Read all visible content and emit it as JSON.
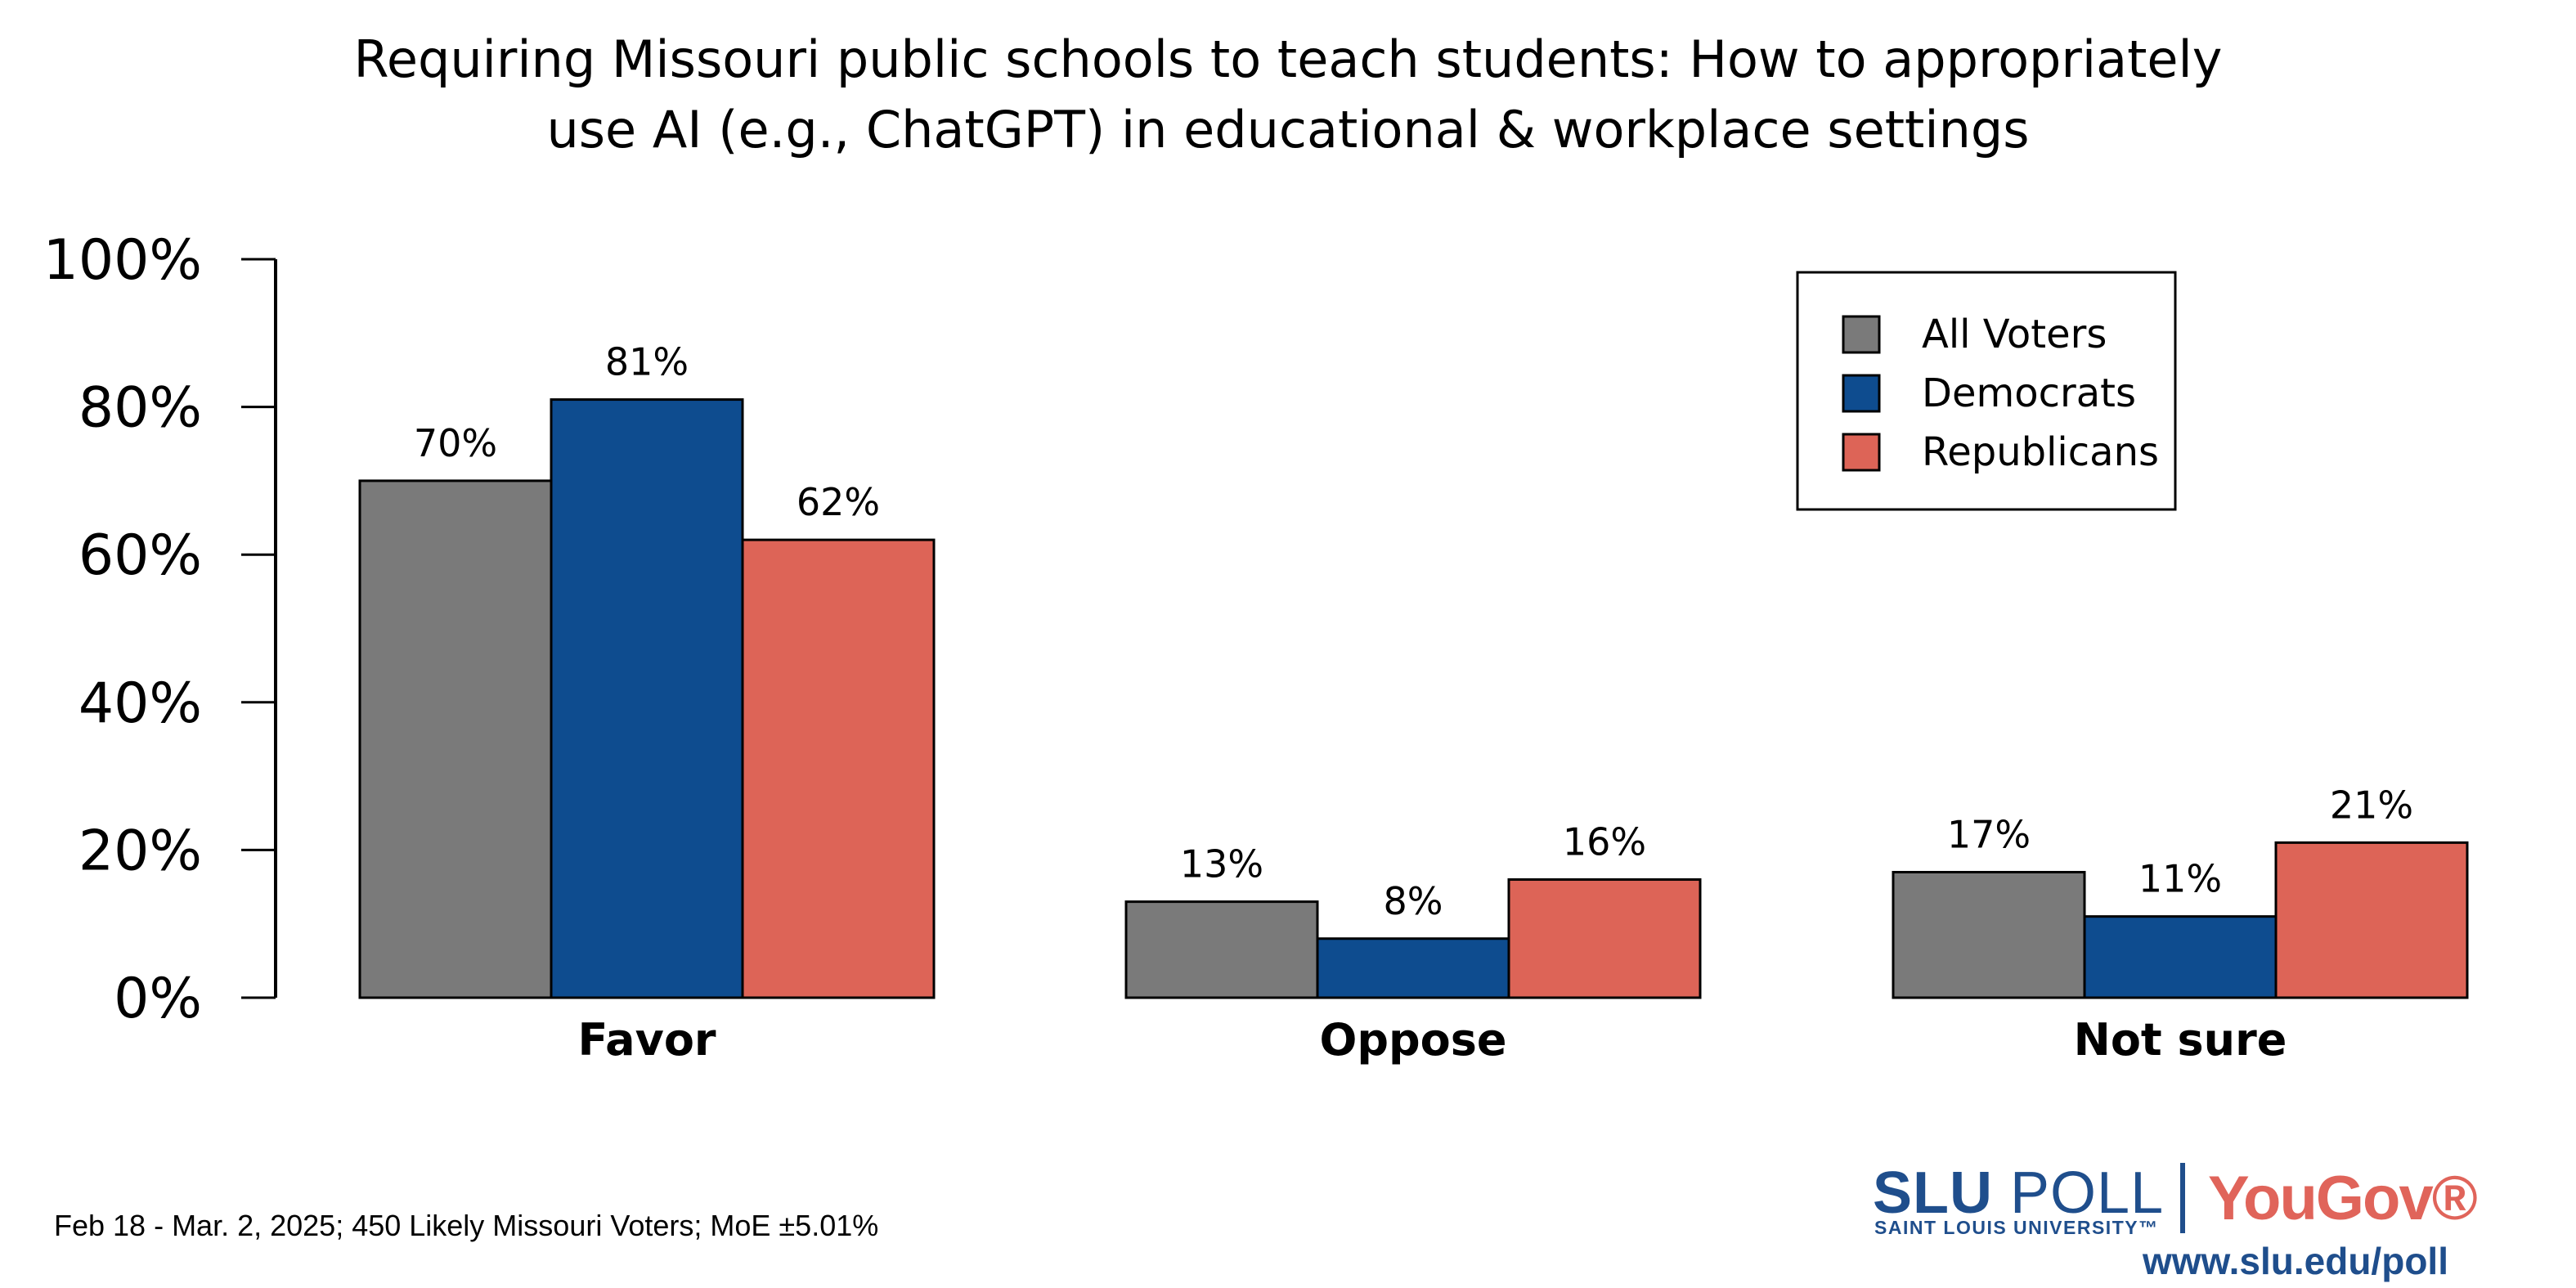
{
  "chart_data": {
    "type": "bar",
    "title": "Requiring Missouri public schools to teach students: How to appropriately use AI (e.g., ChatGPT) in educational & workplace settings",
    "title_lines": [
      "Requiring Missouri public schools to teach students: How to appropriately",
      "use AI (e.g., ChatGPT) in educational & workplace settings"
    ],
    "categories": [
      "Favor",
      "Oppose",
      "Not sure"
    ],
    "series": [
      {
        "name": "All Voters",
        "color": "#7a7a7a",
        "values": [
          70,
          13,
          17
        ]
      },
      {
        "name": "Democrats",
        "color": "#0e4c8f",
        "values": [
          81,
          8,
          11
        ]
      },
      {
        "name": "Republicans",
        "color": "#dd6457",
        "values": [
          62,
          16,
          21
        ]
      }
    ],
    "ylim": [
      0,
      100
    ],
    "yticks": [
      "0%",
      "20%",
      "40%",
      "60%",
      "80%",
      "100%"
    ],
    "xlabel": "",
    "ylabel": "",
    "grid": false,
    "legend_position": "top-right",
    "value_suffix": "%"
  },
  "footer": {
    "note": "Feb 18 - Mar. 2, 2025; 450 Likely Missouri Voters; MoE ±5.01%"
  },
  "logo": {
    "slu_bold": "SLU",
    "slu_poll": " POLL",
    "slu_sub": "SAINT LOUIS UNIVERSITY™",
    "yougov": "YouGov®",
    "url": "www.slu.edu/poll"
  }
}
